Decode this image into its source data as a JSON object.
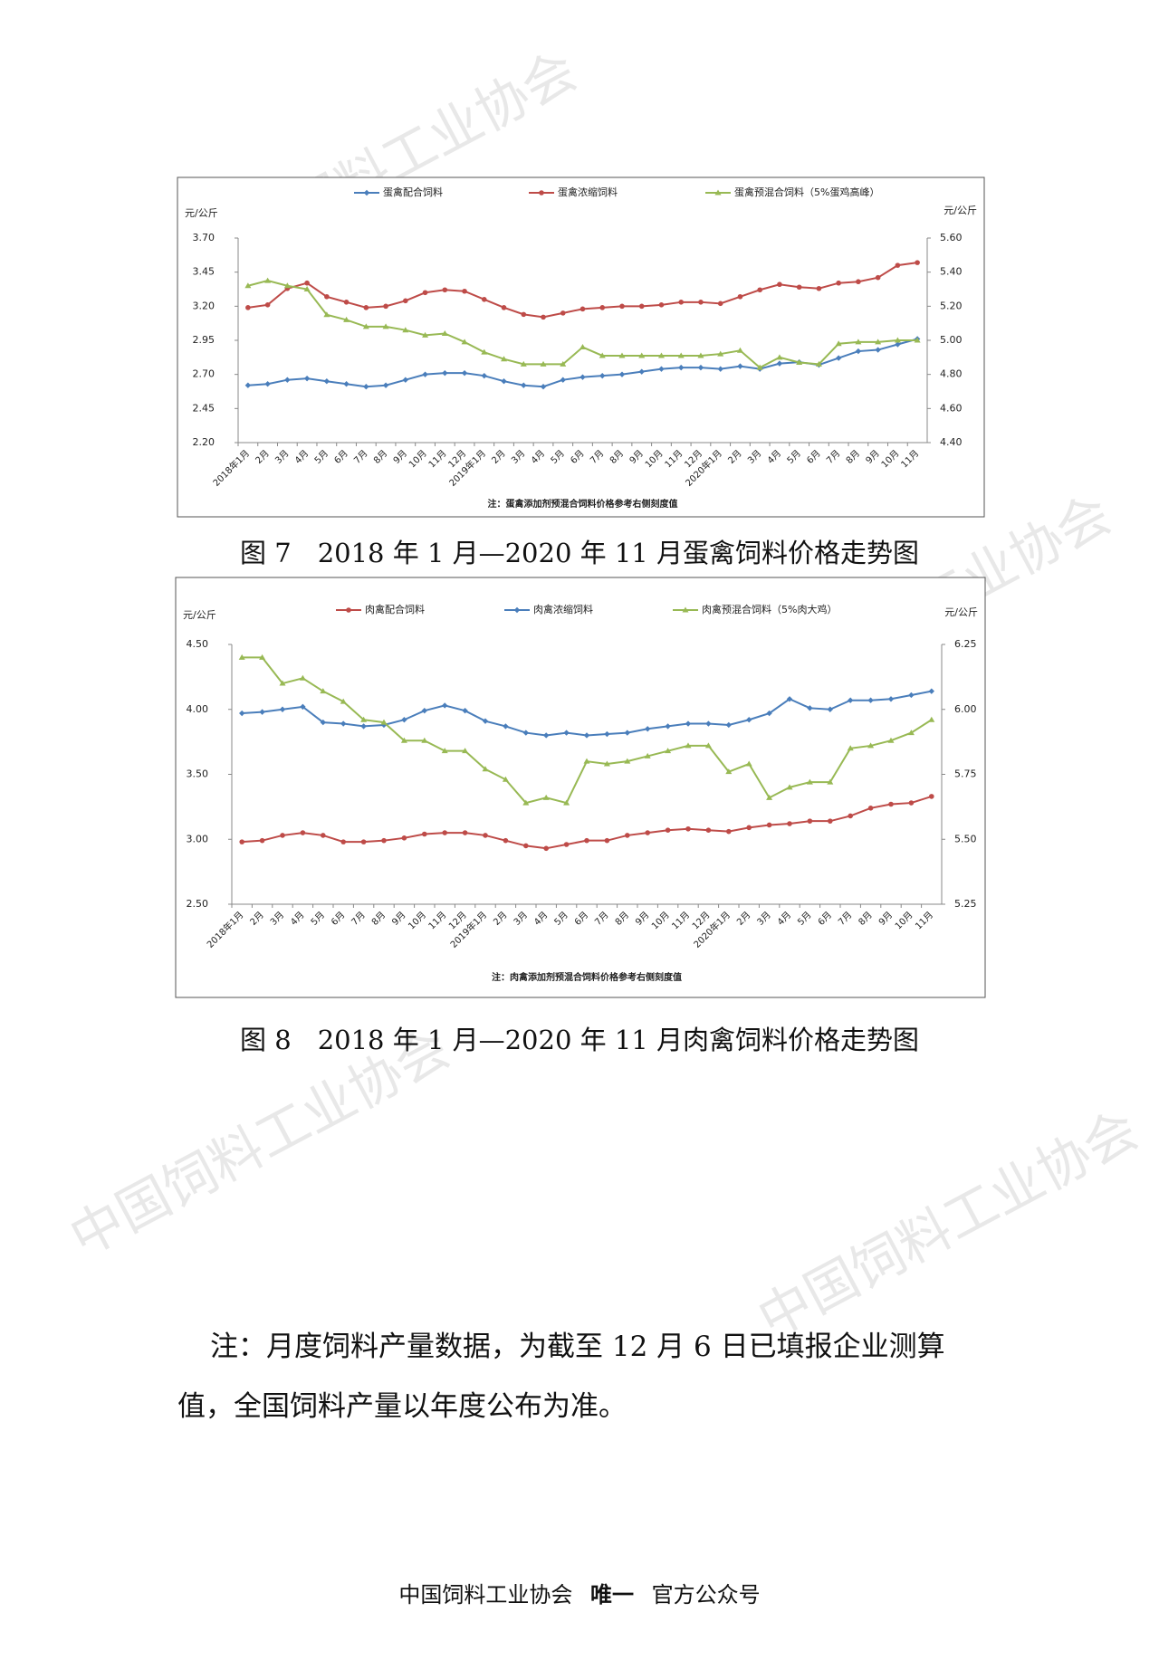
{
  "chart_data": [
    {
      "type": "line",
      "y_label": "元/公斤",
      "y2_label": "元/公斤",
      "note": "注：蛋禽添加剂预混合饲料价格参考右侧刻度值",
      "caption": "图 7　2018 年 1 月—2020 年 11 月蛋禽饲料价格走势图",
      "categories": [
        "2018年1月",
        "2月",
        "3月",
        "4月",
        "5月",
        "6月",
        "7月",
        "8月",
        "9月",
        "10月",
        "11月",
        "12月",
        "2019年1月",
        "2月",
        "3月",
        "4月",
        "5月",
        "6月",
        "7月",
        "8月",
        "9月",
        "10月",
        "11月",
        "12月",
        "2020年1月",
        "2月",
        "3月",
        "4月",
        "5月",
        "6月",
        "7月",
        "8月",
        "9月",
        "10月",
        "11月"
      ],
      "ylim": [
        2.2,
        3.7
      ],
      "yticks": [
        {
          "value": 2.2,
          "label": "2.20"
        },
        2.45,
        {
          "value": 2.7,
          "label": "2.70"
        },
        2.95,
        {
          "value": 3.2,
          "label": "3.20"
        },
        3.45,
        {
          "value": 3.7,
          "label": "3.70"
        }
      ],
      "y2lim": [
        4.4,
        5.6
      ],
      "y2ticks": [
        {
          "value": 4.4,
          "label": "4.40"
        },
        {
          "value": 4.6,
          "label": "4.60"
        },
        {
          "value": 4.8,
          "label": "4.80"
        },
        {
          "value": 5.0,
          "label": "5.00"
        },
        {
          "value": 5.2,
          "label": "5.20"
        },
        {
          "value": 5.4,
          "label": "5.40"
        },
        {
          "value": 5.6,
          "label": "5.60"
        }
      ],
      "series": [
        {
          "name": "蛋禽配合饲料",
          "color": "#4a7ebb",
          "values": [
            2.62,
            2.63,
            2.66,
            2.67,
            2.65,
            2.63,
            2.61,
            2.62,
            2.66,
            2.7,
            2.71,
            2.71,
            2.69,
            2.65,
            2.62,
            2.61,
            2.66,
            2.68,
            2.69,
            2.7,
            2.72,
            2.74,
            2.75,
            2.75,
            2.74,
            2.76,
            2.74,
            2.78,
            2.79,
            2.77,
            2.82,
            2.87,
            2.88,
            2.92,
            2.96
          ]
        },
        {
          "name": "蛋禽浓缩饲料",
          "color": "#be4b48",
          "values": [
            3.19,
            3.21,
            3.33,
            3.37,
            3.27,
            3.23,
            3.19,
            3.2,
            3.24,
            3.3,
            3.32,
            3.31,
            3.25,
            3.19,
            3.14,
            3.12,
            3.15,
            3.18,
            3.19,
            3.2,
            3.2,
            3.21,
            3.23,
            3.23,
            3.22,
            3.27,
            3.32,
            3.36,
            3.34,
            3.33,
            3.37,
            3.38,
            3.41,
            3.5,
            3.52
          ]
        },
        {
          "name": "蛋禽预混合饲料（5%蛋鸡高峰）",
          "color": "#98b954",
          "axis": "y2",
          "values": [
            5.32,
            5.35,
            5.32,
            5.3,
            5.15,
            5.12,
            5.08,
            5.08,
            5.06,
            5.03,
            5.04,
            4.99,
            4.93,
            4.89,
            4.86,
            4.86,
            4.86,
            4.96,
            4.91,
            4.91,
            4.91,
            4.91,
            4.91,
            4.91,
            4.92,
            4.94,
            4.84,
            4.9,
            4.87,
            4.86,
            4.98,
            4.99,
            4.99,
            5.0,
            5.0
          ]
        }
      ]
    },
    {
      "type": "line",
      "y_label": "元/公斤",
      "y2_label": "元/公斤",
      "note": "注：肉禽添加剂预混合饲料价格参考右侧刻度值",
      "caption": "图 8　2018 年 1 月—2020 年 11 月肉禽饲料价格走势图",
      "categories": [
        "2018年1月",
        "2月",
        "3月",
        "4月",
        "5月",
        "6月",
        "7月",
        "8月",
        "9月",
        "10月",
        "11月",
        "12月",
        "2019年1月",
        "2月",
        "3月",
        "4月",
        "5月",
        "6月",
        "7月",
        "8月",
        "9月",
        "10月",
        "11月",
        "12月",
        "2020年1月",
        "2月",
        "3月",
        "4月",
        "5月",
        "6月",
        "7月",
        "8月",
        "9月",
        "10月",
        "11月"
      ],
      "ylim": [
        2.5,
        4.5
      ],
      "yticks": [
        {
          "value": 2.5,
          "label": "2.50"
        },
        {
          "value": 3.0,
          "label": "3.00"
        },
        {
          "value": 3.5,
          "label": "3.50"
        },
        {
          "value": 4.0,
          "label": "4.00"
        },
        {
          "value": 4.5,
          "label": "4.50"
        }
      ],
      "y2lim": [
        5.25,
        6.25
      ],
      "y2ticks": [
        5.25,
        {
          "value": 5.5,
          "label": "5.50"
        },
        5.75,
        {
          "value": 6.0,
          "label": "6.00"
        },
        6.25
      ],
      "series": [
        {
          "name": "肉禽配合饲料",
          "color": "#be4b48",
          "values": [
            2.98,
            2.99,
            3.03,
            3.05,
            3.03,
            2.98,
            2.98,
            2.99,
            3.01,
            3.04,
            3.05,
            3.05,
            3.03,
            2.99,
            2.95,
            2.93,
            2.96,
            2.99,
            2.99,
            3.03,
            3.05,
            3.07,
            3.08,
            3.07,
            3.06,
            3.09,
            3.11,
            3.12,
            3.14,
            3.14,
            3.18,
            3.24,
            3.27,
            3.28,
            3.33
          ]
        },
        {
          "name": "肉禽浓缩饲料",
          "color": "#4a7ebb",
          "values": [
            3.97,
            3.98,
            4.0,
            4.02,
            3.9,
            3.89,
            3.87,
            3.88,
            3.92,
            3.99,
            4.03,
            3.99,
            3.91,
            3.87,
            3.82,
            3.8,
            3.82,
            3.8,
            3.81,
            3.82,
            3.85,
            3.87,
            3.89,
            3.89,
            3.88,
            3.92,
            3.97,
            4.08,
            4.01,
            4.0,
            4.07,
            4.07,
            4.08,
            4.11,
            4.14
          ]
        },
        {
          "name": "肉禽预混合饲料（5%肉大鸡）",
          "color": "#98b954",
          "axis": "y2",
          "values": [
            6.2,
            6.2,
            6.1,
            6.12,
            6.07,
            6.03,
            5.96,
            5.95,
            5.88,
            5.88,
            5.84,
            5.84,
            5.77,
            5.73,
            5.64,
            5.66,
            5.64,
            5.8,
            5.79,
            5.8,
            5.82,
            5.84,
            5.86,
            5.86,
            5.76,
            5.79,
            5.66,
            5.7,
            5.72,
            5.72,
            5.85,
            5.86,
            5.88,
            5.91,
            5.96
          ]
        }
      ]
    }
  ],
  "watermark": "中国饲料工业协会",
  "note": "注：月度饲料产量数据，为截至 12 月 6 日已填报企业测算值，全国饲料产量以年度公布为准。",
  "footer": {
    "parts": [
      "中国饲料工业协会",
      "唯一",
      "官方公众号"
    ]
  }
}
